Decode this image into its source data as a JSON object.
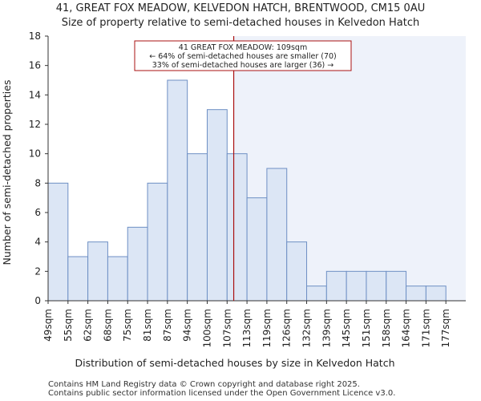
{
  "header": {
    "title": "41, GREAT FOX MEADOW, KELVEDON HATCH, BRENTWOOD, CM15 0AU",
    "subtitle": "Size of property relative to semi-detached houses in Kelvedon Hatch"
  },
  "chart_data": {
    "type": "bar",
    "categories": [
      "49sqm",
      "55sqm",
      "62sqm",
      "68sqm",
      "75sqm",
      "81sqm",
      "87sqm",
      "94sqm",
      "100sqm",
      "107sqm",
      "113sqm",
      "119sqm",
      "126sqm",
      "132sqm",
      "139sqm",
      "145sqm",
      "151sqm",
      "158sqm",
      "164sqm",
      "171sqm",
      "177sqm"
    ],
    "values": [
      8,
      3,
      4,
      3,
      5,
      8,
      15,
      10,
      13,
      10,
      7,
      9,
      4,
      1,
      2,
      2,
      2,
      2,
      1,
      1,
      0
    ],
    "ylim": [
      0,
      18
    ],
    "yticks": [
      0,
      2,
      4,
      6,
      8,
      10,
      12,
      14,
      16,
      18
    ],
    "xlabel": "Distribution of semi-detached houses by size in Kelvedon Hatch",
    "ylabel": "Number of semi-detached properties",
    "grid": false,
    "bar_fill": "#dce6f5",
    "bar_edge": "#6e8fc4",
    "marker": {
      "value_sqm": 109,
      "color": "#aa1111",
      "shaded_region_color": "#eef2fa"
    },
    "annotation": {
      "line1": "41 GREAT FOX MEADOW: 109sqm",
      "line2": "← 64% of semi-detached houses are smaller (70)",
      "line3": "33% of semi-detached houses are larger (36) →",
      "border_color": "#aa1111"
    }
  },
  "footer": {
    "line1": "Contains HM Land Registry data © Crown copyright and database right 2025.",
    "line2": "Contains public sector information licensed under the Open Government Licence v3.0."
  }
}
